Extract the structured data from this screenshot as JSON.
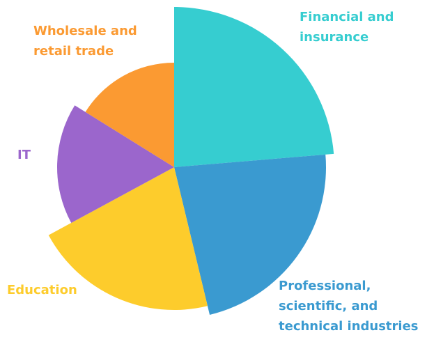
{
  "chart_data": {
    "type": "polar-area",
    "categories": [
      "Financial and insurance",
      "Professional, scientific, and technical industries",
      "Education",
      "IT",
      "Wholesale and retail trade"
    ],
    "values": [
      23.6,
      22.5,
      20.8,
      16.7,
      16.1
    ],
    "radii": [
      230,
      218,
      205,
      168,
      150
    ],
    "rlim": [
      0,
      230
    ],
    "colors": [
      "#36cdd0",
      "#3a9ad0",
      "#fdcc2c",
      "#9b66cc",
      "#fb9a32"
    ]
  }
}
